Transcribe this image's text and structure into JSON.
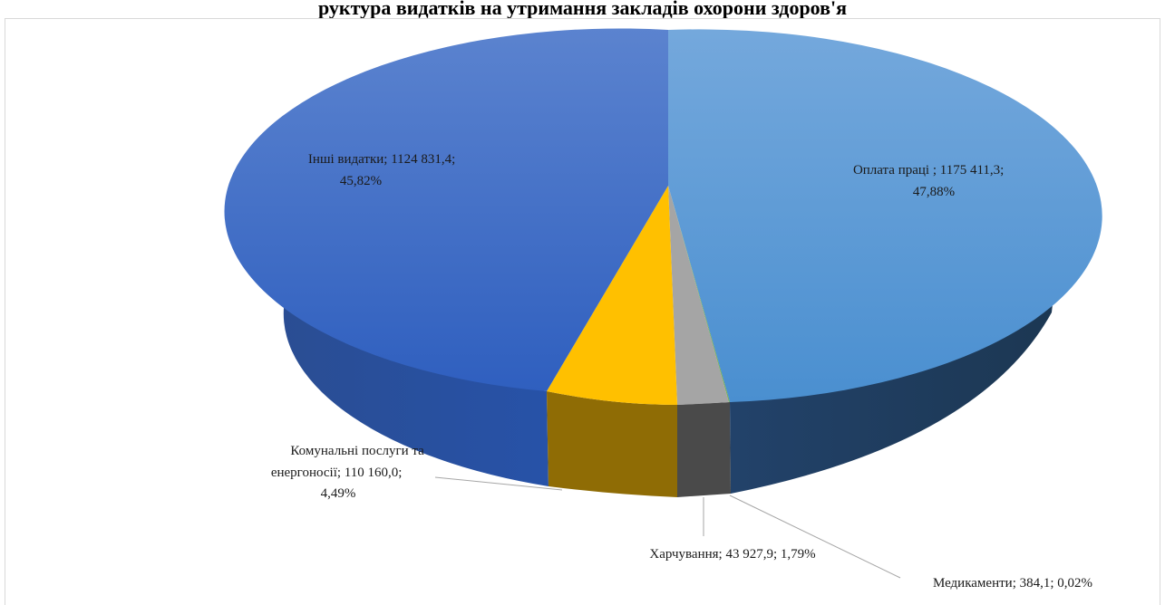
{
  "chart_data": {
    "type": "pie",
    "title": "руктура видатків на утримання закладів охорони здоров'я",
    "colors": {
      "pay": "#5b9bd5",
      "food": "#a5a5a5",
      "meds": "#70ad47",
      "utilities": "#ffc000",
      "other": "#4472c4"
    },
    "slices": [
      {
        "name": "Оплата праці ",
        "value": "1175 411,3",
        "percent": 47.88,
        "percent_label": "47,88%",
        "color": "#5b9bd5"
      },
      {
        "name": "Медикаменти",
        "value": "384,1",
        "percent": 0.02,
        "percent_label": "0,02%",
        "color": "#70ad47"
      },
      {
        "name": "Харчування",
        "value": "43 927,9",
        "percent": 1.79,
        "percent_label": "1,79%",
        "color": "#a5a5a5"
      },
      {
        "name": "Комунальні послуги та енергоносії",
        "value": "110 160,0",
        "percent": 4.49,
        "percent_label": "4,49%",
        "color": "#ffc000"
      },
      {
        "name": "Інші видатки",
        "value": "1124 831,4",
        "percent": 45.82,
        "percent_label": "45,82%",
        "color": "#4472c4"
      }
    ],
    "labels": {
      "pay": [
        "Оплата праці ; 1175 411,3;",
        "47,88%"
      ],
      "other": [
        "Інші видатки; 1124 831,4;",
        "45,82%"
      ],
      "utilities": [
        "Комунальні послуги та",
        "енергоносії; 110 160,0;",
        "4,49%"
      ],
      "food": "Харчування; 43 927,9; 1,79%",
      "meds": "Медикаменти;  384,1; 0,02%"
    }
  }
}
